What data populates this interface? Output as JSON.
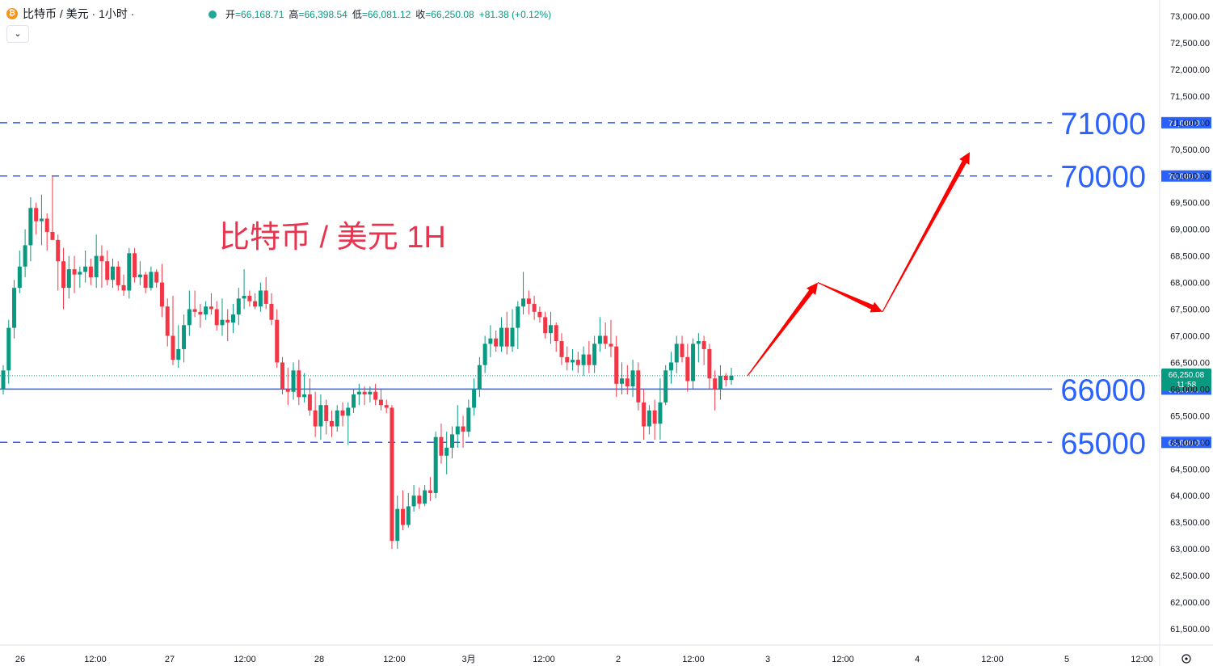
{
  "header": {
    "coin_icon": "bitcoin-icon",
    "symbol_title": "比特币 / 美元 · 1小时 ·",
    "open_label": "开",
    "open_value": "=66,168.71",
    "high_label": "高",
    "high_value": "=66,398.54",
    "low_label": "低",
    "low_value": "=66,081.12",
    "close_label": "收",
    "close_value": "=66,250.08",
    "change_value": "+81.38 (+0.12%)",
    "collapse_icon": "chevron-down-icon"
  },
  "annotation_title": "比特币 / 美元 1H",
  "chart_data": {
    "type": "candlestick",
    "y_axis": {
      "ylim": [
        61300,
        73200
      ],
      "tick_values": [
        73000,
        72500,
        72000,
        71500,
        71000,
        70500,
        70000,
        69500,
        69000,
        68500,
        68000,
        67500,
        67000,
        66500,
        66000,
        65500,
        65000,
        64500,
        64000,
        63500,
        63000,
        62500,
        62000,
        61500
      ],
      "tick_labels": [
        "73,000.00",
        "72,500.00",
        "72,000.00",
        "71,500.00",
        "71,000.00",
        "70,500.00",
        "70,000.00",
        "69,500.00",
        "69,000.00",
        "68,500.00",
        "68,000.00",
        "67,500.00",
        "67,000.00",
        "66,500.00",
        "66,000.00",
        "65,500.00",
        "65,000.00",
        "64,500.00",
        "64,000.00",
        "63,500.00",
        "63,000.00",
        "62,500.00",
        "62,000.00",
        "61,500.00"
      ]
    },
    "x_axis": {
      "tick_labels": [
        "26",
        "12:00",
        "27",
        "12:00",
        "28",
        "12:00",
        "3月",
        "12:00",
        "2",
        "12:00",
        "3",
        "12:00",
        "4",
        "12:00",
        "5",
        "12:00"
      ]
    },
    "levels": [
      {
        "value": 71000,
        "label": "71000",
        "tag": "71,000.00",
        "style": "dashed"
      },
      {
        "value": 70000,
        "label": "70000",
        "tag": "70,000.00",
        "style": "dashed"
      },
      {
        "value": 66000,
        "label": "66000",
        "tag": "66,000.00",
        "style": "solid"
      },
      {
        "value": 65000,
        "label": "65000",
        "tag": "65,000.00",
        "style": "dashed"
      }
    ],
    "last_price": {
      "value": 66250.08,
      "tag": "66,250.08",
      "countdown": "11:58"
    },
    "projection_path": [
      66250,
      68000,
      67450,
      70450
    ],
    "colors": {
      "up": "#089981",
      "down": "#f23645",
      "level": "#2962ff",
      "arrow": "#ff0000",
      "level_text": "#2962ff"
    },
    "candles": [
      [
        66000,
        66450,
        65900,
        66350
      ],
      [
        66350,
        67300,
        66100,
        67150
      ],
      [
        67150,
        68050,
        66950,
        67900
      ],
      [
        67900,
        68600,
        67800,
        68300
      ],
      [
        68300,
        69000,
        68100,
        68700
      ],
      [
        68700,
        69600,
        68400,
        69400
      ],
      [
        69400,
        69500,
        68900,
        69150
      ],
      [
        69150,
        69650,
        68700,
        69200
      ],
      [
        69200,
        69300,
        68600,
        68950
      ],
      [
        68950,
        70000,
        68800,
        68800
      ],
      [
        68800,
        68900,
        67850,
        68400
      ],
      [
        68400,
        68650,
        67500,
        67900
      ],
      [
        67900,
        68500,
        67700,
        68250
      ],
      [
        68250,
        68500,
        67800,
        68150
      ],
      [
        68150,
        68300,
        67900,
        68200
      ],
      [
        68200,
        68600,
        68000,
        68300
      ],
      [
        68300,
        68450,
        67950,
        68100
      ],
      [
        68100,
        68900,
        67900,
        68500
      ],
      [
        68500,
        68700,
        67900,
        68400
      ],
      [
        68400,
        68600,
        67950,
        68050
      ],
      [
        68050,
        68450,
        67900,
        68300
      ],
      [
        68300,
        68400,
        67850,
        67950
      ],
      [
        67950,
        68150,
        67750,
        67850
      ],
      [
        67850,
        68650,
        67700,
        68550
      ],
      [
        68550,
        68650,
        68000,
        68100
      ],
      [
        68100,
        68400,
        67950,
        68150
      ],
      [
        68150,
        68200,
        67800,
        67900
      ],
      [
        67900,
        68300,
        67850,
        68200
      ],
      [
        68200,
        68250,
        67900,
        68000
      ],
      [
        68000,
        68350,
        67350,
        67550
      ],
      [
        67550,
        67700,
        66800,
        67000
      ],
      [
        67000,
        67750,
        66450,
        66550
      ],
      [
        66550,
        67200,
        66400,
        66750
      ],
      [
        66750,
        67400,
        66500,
        67200
      ],
      [
        67200,
        67850,
        67000,
        67500
      ],
      [
        67500,
        67850,
        67350,
        67450
      ],
      [
        67450,
        67600,
        67150,
        67400
      ],
      [
        67400,
        67650,
        67300,
        67550
      ],
      [
        67550,
        67800,
        67400,
        67500
      ],
      [
        67500,
        67650,
        67100,
        67200
      ],
      [
        67200,
        67700,
        67000,
        67300
      ],
      [
        67300,
        67500,
        66900,
        67250
      ],
      [
        67250,
        67600,
        67050,
        67400
      ],
      [
        67400,
        67900,
        67200,
        67700
      ],
      [
        67700,
        68250,
        67500,
        67750
      ],
      [
        67750,
        67850,
        67550,
        67650
      ],
      [
        67650,
        67800,
        67500,
        67550
      ],
      [
        67550,
        68000,
        67450,
        67850
      ],
      [
        67850,
        68100,
        67500,
        67600
      ],
      [
        67600,
        67800,
        67200,
        67300
      ],
      [
        67300,
        67500,
        66400,
        66500
      ],
      [
        66500,
        66600,
        65900,
        66000
      ],
      [
        66000,
        66400,
        65700,
        65950
      ],
      [
        65950,
        66500,
        65800,
        66350
      ],
      [
        66350,
        66550,
        65700,
        65850
      ],
      [
        65850,
        66300,
        65750,
        65900
      ],
      [
        65900,
        66200,
        65500,
        65600
      ],
      [
        65600,
        65950,
        65100,
        65300
      ],
      [
        65300,
        65900,
        65050,
        65700
      ],
      [
        65700,
        65800,
        65150,
        65400
      ],
      [
        65400,
        65600,
        65100,
        65300
      ],
      [
        65300,
        65700,
        65200,
        65600
      ],
      [
        65600,
        65750,
        65300,
        65500
      ],
      [
        65500,
        65750,
        64950,
        65650
      ],
      [
        65650,
        66000,
        65550,
        65900
      ],
      [
        65900,
        66100,
        65700,
        65950
      ],
      [
        65950,
        66050,
        65700,
        65900
      ],
      [
        65900,
        66050,
        65750,
        65950
      ],
      [
        65950,
        66100,
        65700,
        65800
      ],
      [
        65800,
        66000,
        65600,
        65700
      ],
      [
        65700,
        65800,
        65550,
        65650
      ],
      [
        65650,
        65700,
        63000,
        63150
      ],
      [
        63150,
        64000,
        63000,
        63750
      ],
      [
        63750,
        64100,
        63350,
        63450
      ],
      [
        63450,
        64050,
        63400,
        63800
      ],
      [
        63800,
        64200,
        63700,
        64000
      ],
      [
        64000,
        64150,
        63750,
        63850
      ],
      [
        63850,
        64200,
        63800,
        64100
      ],
      [
        64100,
        64350,
        63900,
        64050
      ],
      [
        64050,
        65200,
        63950,
        65100
      ],
      [
        65100,
        65350,
        64600,
        64750
      ],
      [
        64750,
        65200,
        64400,
        64900
      ],
      [
        64900,
        65300,
        64700,
        65150
      ],
      [
        65150,
        65700,
        64900,
        65300
      ],
      [
        65300,
        65500,
        64900,
        65200
      ],
      [
        65200,
        65800,
        65100,
        65650
      ],
      [
        65650,
        66200,
        65500,
        66000
      ],
      [
        66000,
        66600,
        65850,
        66450
      ],
      [
        66450,
        67000,
        66300,
        66850
      ],
      [
        66850,
        67200,
        66600,
        66950
      ],
      [
        66950,
        67100,
        66700,
        66800
      ],
      [
        66800,
        67350,
        66700,
        67150
      ],
      [
        67150,
        67450,
        66650,
        66800
      ],
      [
        66800,
        67500,
        66700,
        67150
      ],
      [
        67150,
        67650,
        66750,
        67550
      ],
      [
        67550,
        68200,
        67400,
        67700
      ],
      [
        67700,
        67850,
        67400,
        67600
      ],
      [
        67600,
        67750,
        67300,
        67450
      ],
      [
        67450,
        67550,
        67250,
        67350
      ],
      [
        67350,
        67450,
        66950,
        67050
      ],
      [
        67050,
        67450,
        66850,
        67200
      ],
      [
        67200,
        67250,
        66700,
        66900
      ],
      [
        66900,
        67050,
        66450,
        66600
      ],
      [
        66600,
        66800,
        66350,
        66500
      ],
      [
        66500,
        66750,
        66350,
        66550
      ],
      [
        66550,
        66700,
        66300,
        66450
      ],
      [
        66450,
        66800,
        66250,
        66650
      ],
      [
        66650,
        66900,
        66300,
        66450
      ],
      [
        66450,
        67000,
        66300,
        66850
      ],
      [
        66850,
        67350,
        66700,
        67000
      ],
      [
        67000,
        67250,
        66750,
        66850
      ],
      [
        66850,
        67300,
        66600,
        66800
      ],
      [
        66800,
        67000,
        65850,
        66100
      ],
      [
        66100,
        66500,
        65900,
        66200
      ],
      [
        66200,
        66450,
        65900,
        66050
      ],
      [
        66050,
        66550,
        65850,
        66350
      ],
      [
        66350,
        66500,
        65600,
        65750
      ],
      [
        65750,
        66000,
        65050,
        65300
      ],
      [
        65300,
        65700,
        65150,
        65600
      ],
      [
        65600,
        65800,
        65050,
        65350
      ],
      [
        65350,
        66200,
        65050,
        65750
      ],
      [
        65750,
        66450,
        65700,
        66350
      ],
      [
        66350,
        66700,
        66100,
        66500
      ],
      [
        66500,
        67000,
        66300,
        66850
      ],
      [
        66850,
        67000,
        66500,
        66600
      ],
      [
        66600,
        66850,
        65950,
        66150
      ],
      [
        66150,
        66950,
        66000,
        66850
      ],
      [
        66850,
        67050,
        66500,
        66900
      ],
      [
        66900,
        67000,
        66450,
        66750
      ],
      [
        66750,
        66850,
        66000,
        66200
      ],
      [
        66200,
        66350,
        65600,
        66000
      ],
      [
        66000,
        66450,
        65800,
        66250
      ],
      [
        66250,
        66300,
        66050,
        66170
      ],
      [
        66170,
        66400,
        66080,
        66250
      ]
    ]
  }
}
